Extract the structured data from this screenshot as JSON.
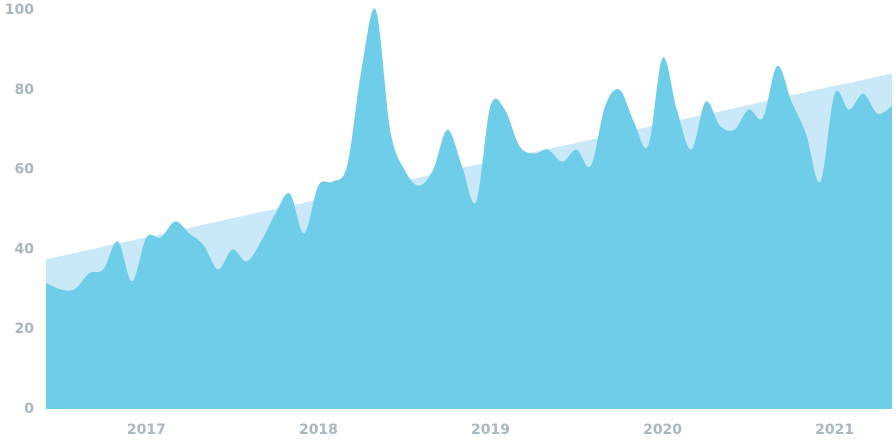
{
  "chart_data": {
    "type": "area",
    "categories": [
      null,
      null,
      null,
      null,
      null,
      null,
      null,
      "2017",
      null,
      null,
      null,
      null,
      null,
      null,
      null,
      null,
      null,
      null,
      null,
      "2018",
      null,
      null,
      null,
      null,
      null,
      null,
      null,
      null,
      null,
      null,
      null,
      "2019",
      null,
      null,
      null,
      null,
      null,
      null,
      null,
      null,
      null,
      null,
      null,
      "2020",
      null,
      null,
      null,
      null,
      null,
      null,
      null,
      null,
      null,
      null,
      null,
      "2021",
      null,
      null,
      null,
      null
    ],
    "series": [
      {
        "color": "#c9e9f8",
        "values": [
          37.5,
          38.3,
          39.1,
          39.9,
          40.7,
          41.5,
          42.2,
          43.0,
          43.8,
          44.6,
          45.4,
          46.2,
          47.0,
          47.8,
          48.6,
          49.4,
          50.1,
          50.9,
          51.7,
          52.5,
          53.3,
          54.1,
          54.9,
          55.7,
          56.5,
          57.3,
          58.0,
          58.8,
          59.6,
          60.4,
          61.2,
          62.0,
          62.8,
          63.6,
          64.4,
          65.2,
          65.9,
          66.7,
          67.5,
          68.3,
          69.1,
          69.9,
          70.7,
          71.5,
          72.3,
          73.1,
          73.8,
          74.6,
          75.4,
          76.2,
          77.0,
          77.8,
          78.6,
          79.4,
          80.2,
          81.0,
          81.7,
          82.5,
          83.3,
          84.1
        ]
      },
      {
        "color": "#6ecde9",
        "values": [
          31.6,
          30,
          30,
          34,
          35,
          42,
          32,
          43,
          43,
          47,
          44,
          41,
          35,
          40,
          37,
          42,
          49,
          54,
          44,
          56,
          57,
          61,
          85,
          100,
          70,
          60,
          56,
          60,
          70,
          61,
          52,
          76,
          75,
          66,
          64,
          65,
          62,
          65,
          61,
          76,
          80,
          72,
          66,
          88,
          75,
          65,
          77,
          71,
          70,
          75,
          73,
          86,
          77,
          69,
          57,
          79,
          75,
          79,
          74,
          76
        ]
      }
    ],
    "ylim": [
      0,
      100
    ],
    "yticks": [
      0,
      20,
      40,
      60,
      80,
      100
    ],
    "grid": false
  }
}
